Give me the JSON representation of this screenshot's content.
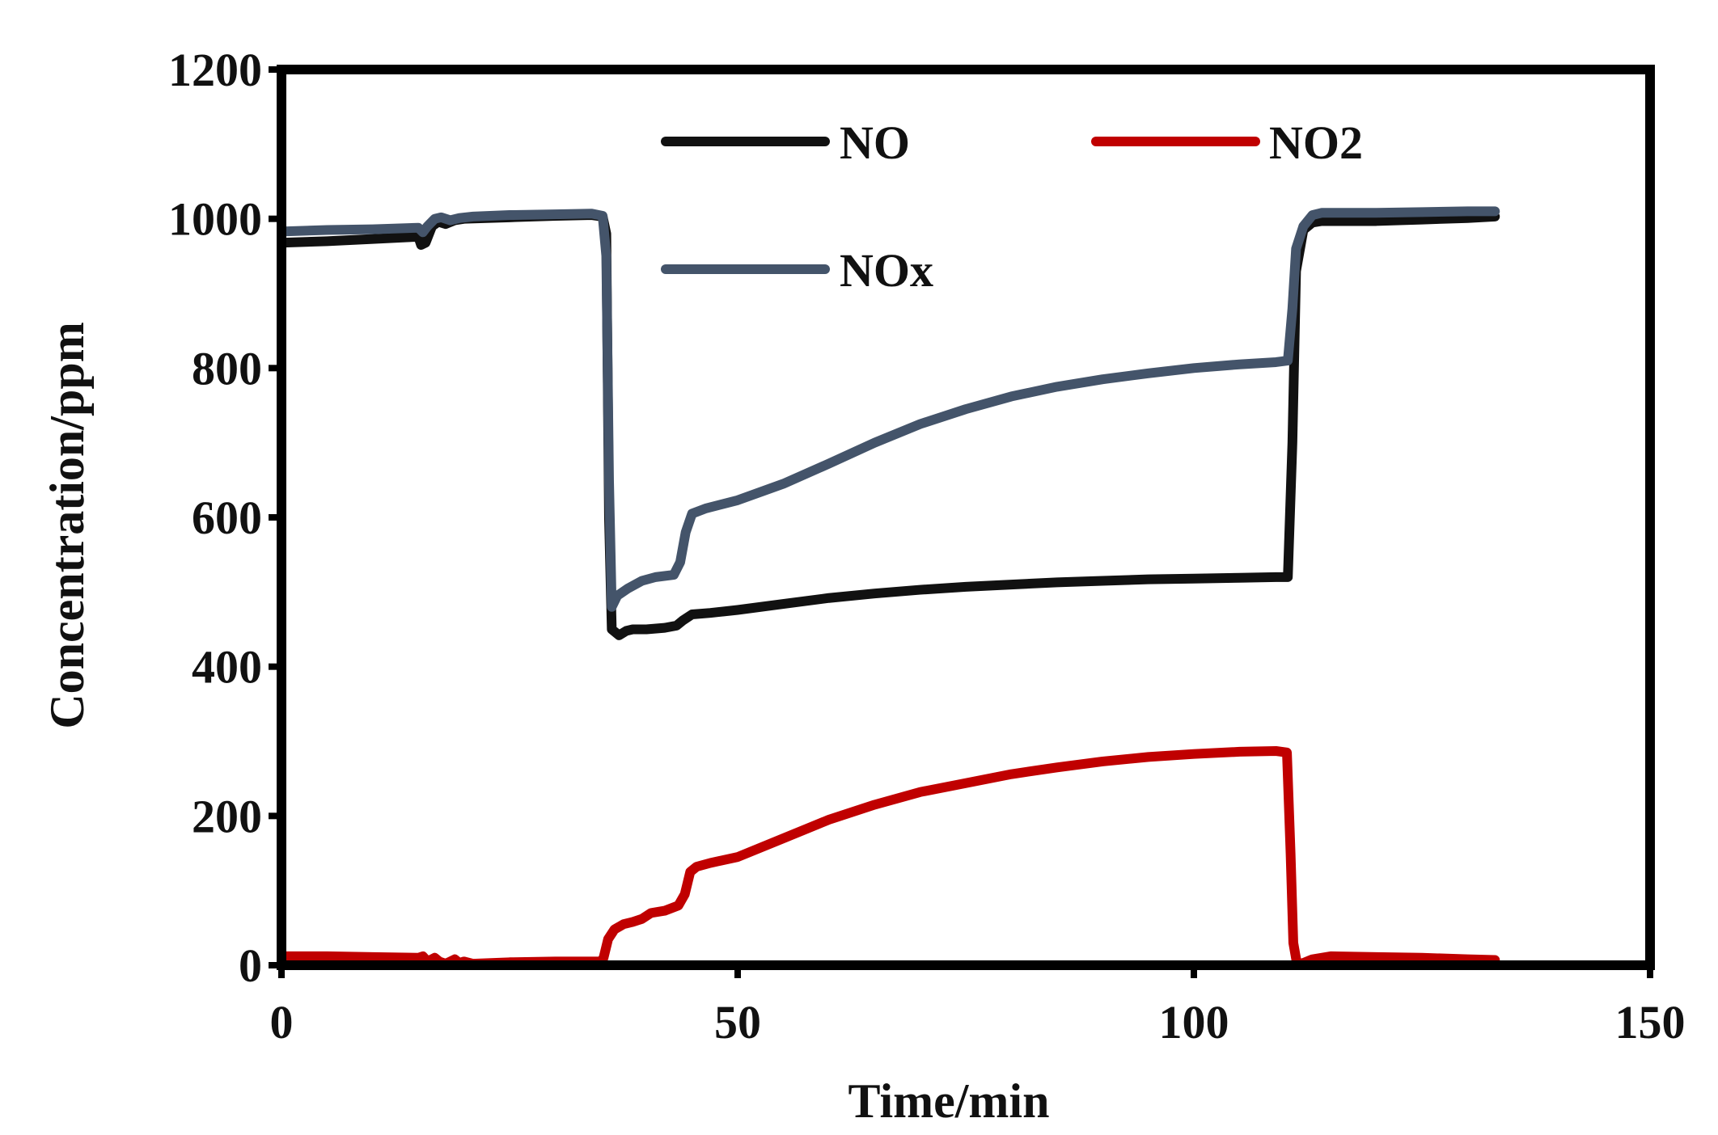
{
  "chart_data": {
    "type": "line",
    "title": "",
    "xlabel": "Time/min",
    "ylabel": "Concentration/ppm",
    "xlim": [
      0,
      150
    ],
    "ylim": [
      0,
      1200
    ],
    "xticks": [
      0,
      50,
      100,
      150
    ],
    "yticks": [
      0,
      200,
      400,
      600,
      800,
      1000,
      1200
    ],
    "xtick_labels": [
      "0",
      "50",
      "100",
      "150"
    ],
    "ytick_labels": [
      "0",
      "200",
      "400",
      "600",
      "800",
      "1000",
      "1200"
    ],
    "grid": false,
    "legend_placement": "top-center",
    "series": [
      {
        "name": "NO",
        "color": "#111111",
        "points": [
          [
            0,
            968
          ],
          [
            5,
            970
          ],
          [
            10,
            973
          ],
          [
            15,
            976
          ],
          [
            15.3,
            965
          ],
          [
            15.8,
            968
          ],
          [
            16.5,
            990
          ],
          [
            17.2,
            996
          ],
          [
            18,
            993
          ],
          [
            19,
            998
          ],
          [
            20,
            1000
          ],
          [
            25,
            1002
          ],
          [
            30,
            1004
          ],
          [
            34,
            1005
          ],
          [
            35.2,
            1003
          ],
          [
            35.6,
            980
          ],
          [
            35.9,
            600
          ],
          [
            36.2,
            450
          ],
          [
            37,
            442
          ],
          [
            37.8,
            448
          ],
          [
            38.5,
            450
          ],
          [
            40,
            450
          ],
          [
            42,
            452
          ],
          [
            43.3,
            455
          ],
          [
            44,
            462
          ],
          [
            45,
            470
          ],
          [
            47,
            472
          ],
          [
            50,
            476
          ],
          [
            55,
            484
          ],
          [
            60,
            492
          ],
          [
            65,
            498
          ],
          [
            70,
            503
          ],
          [
            75,
            507
          ],
          [
            80,
            510
          ],
          [
            85,
            513
          ],
          [
            90,
            515
          ],
          [
            95,
            517
          ],
          [
            100,
            518
          ],
          [
            105,
            519
          ],
          [
            109,
            520
          ],
          [
            110.3,
            520
          ],
          [
            110.8,
            700
          ],
          [
            111.2,
            930
          ],
          [
            112,
            985
          ],
          [
            113,
            995
          ],
          [
            114,
            997
          ],
          [
            120,
            997
          ],
          [
            125,
            999
          ],
          [
            130,
            1001
          ],
          [
            133,
            1003
          ]
        ]
      },
      {
        "name": "NO2",
        "color": "#c00000",
        "points": [
          [
            0,
            12
          ],
          [
            5,
            12
          ],
          [
            10,
            11
          ],
          [
            15,
            10
          ],
          [
            15.5,
            12
          ],
          [
            16,
            5
          ],
          [
            16.8,
            10
          ],
          [
            17.3,
            5
          ],
          [
            18,
            2
          ],
          [
            19,
            8
          ],
          [
            19.5,
            3
          ],
          [
            20,
            5
          ],
          [
            21,
            2
          ],
          [
            23,
            3
          ],
          [
            25,
            4
          ],
          [
            30,
            5
          ],
          [
            35,
            5
          ],
          [
            35.3,
            10
          ],
          [
            35.8,
            35
          ],
          [
            36.5,
            48
          ],
          [
            37.5,
            55
          ],
          [
            38.5,
            58
          ],
          [
            39.5,
            62
          ],
          [
            40.5,
            70
          ],
          [
            42,
            73
          ],
          [
            43.5,
            80
          ],
          [
            44.2,
            95
          ],
          [
            44.8,
            125
          ],
          [
            45.5,
            132
          ],
          [
            47,
            137
          ],
          [
            50,
            145
          ],
          [
            55,
            170
          ],
          [
            60,
            195
          ],
          [
            65,
            215
          ],
          [
            70,
            232
          ],
          [
            75,
            244
          ],
          [
            80,
            256
          ],
          [
            85,
            265
          ],
          [
            90,
            273
          ],
          [
            95,
            279
          ],
          [
            100,
            283
          ],
          [
            105,
            286
          ],
          [
            109,
            287
          ],
          [
            110.2,
            285
          ],
          [
            110.6,
            150
          ],
          [
            110.9,
            30
          ],
          [
            111.3,
            2
          ],
          [
            112,
            3
          ],
          [
            113,
            8
          ],
          [
            115,
            12
          ],
          [
            120,
            11
          ],
          [
            125,
            10
          ],
          [
            130,
            8
          ],
          [
            133,
            7
          ]
        ]
      },
      {
        "name": "NOx",
        "color": "#44546a",
        "points": [
          [
            0,
            983
          ],
          [
            5,
            985
          ],
          [
            10,
            986
          ],
          [
            15,
            988
          ],
          [
            15.5,
            982
          ],
          [
            16,
            990
          ],
          [
            16.8,
            1000
          ],
          [
            17.5,
            1002
          ],
          [
            18.5,
            998
          ],
          [
            19.5,
            1001
          ],
          [
            21,
            1003
          ],
          [
            25,
            1005
          ],
          [
            30,
            1006
          ],
          [
            34,
            1007
          ],
          [
            35.2,
            1004
          ],
          [
            35.6,
            950
          ],
          [
            35.9,
            650
          ],
          [
            36.2,
            480
          ],
          [
            36.8,
            495
          ],
          [
            38,
            505
          ],
          [
            39.5,
            515
          ],
          [
            41,
            520
          ],
          [
            43,
            523
          ],
          [
            43.7,
            540
          ],
          [
            44.3,
            580
          ],
          [
            45,
            605
          ],
          [
            46.5,
            612
          ],
          [
            50,
            623
          ],
          [
            55,
            645
          ],
          [
            60,
            672
          ],
          [
            65,
            700
          ],
          [
            70,
            725
          ],
          [
            75,
            745
          ],
          [
            80,
            762
          ],
          [
            85,
            775
          ],
          [
            90,
            785
          ],
          [
            95,
            793
          ],
          [
            100,
            800
          ],
          [
            105,
            805
          ],
          [
            109,
            808
          ],
          [
            110.3,
            810
          ],
          [
            110.8,
            880
          ],
          [
            111.2,
            960
          ],
          [
            112,
            990
          ],
          [
            113,
            1005
          ],
          [
            114,
            1008
          ],
          [
            120,
            1008
          ],
          [
            125,
            1009
          ],
          [
            130,
            1010
          ],
          [
            133,
            1010
          ]
        ]
      }
    ]
  }
}
